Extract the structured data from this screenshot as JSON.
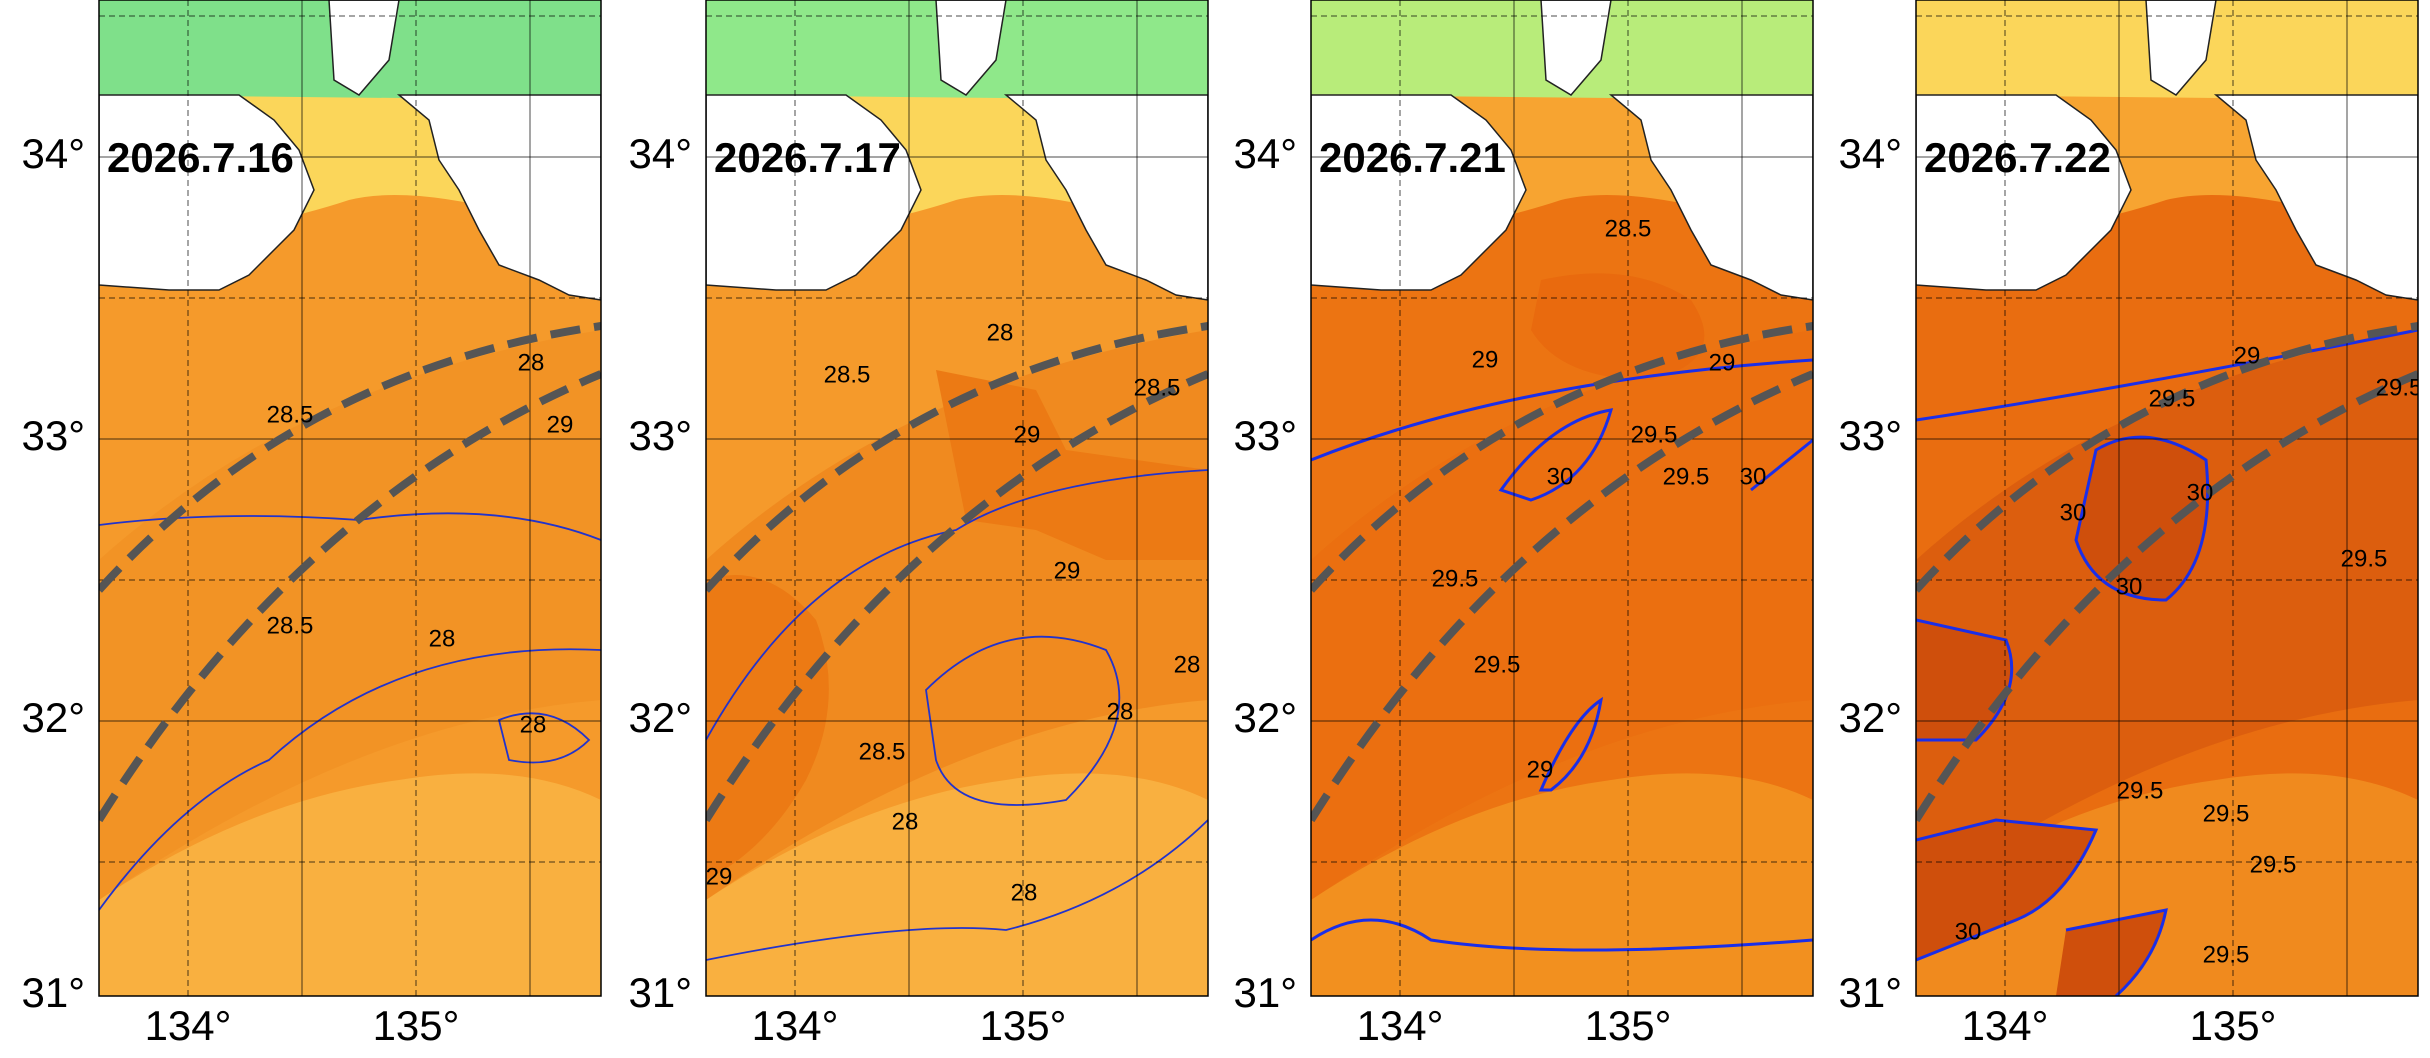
{
  "panels": [
    {
      "date": "2026.7.16",
      "lat_labels": [
        "34°",
        "33°",
        "32°",
        "31°"
      ],
      "lon_labels": [
        "134°",
        "135°"
      ],
      "contour_labels": [
        "28.5",
        "28",
        "29",
        "28.5",
        "28",
        "28"
      ]
    },
    {
      "date": "2026.7.17",
      "lat_labels": [
        "34°",
        "33°",
        "32°",
        "31°"
      ],
      "lon_labels": [
        "134°",
        "135°"
      ],
      "contour_labels": [
        "28.5",
        "28",
        "28.5",
        "29",
        "29",
        "28.5",
        "28",
        "28",
        "28",
        "28",
        "29"
      ]
    },
    {
      "date": "2026.7.21",
      "lat_labels": [
        "34°",
        "33°",
        "32°",
        "31°"
      ],
      "lon_labels": [
        "134°",
        "135°"
      ],
      "contour_labels": [
        "28.5",
        "29",
        "29",
        "29.5",
        "29.5",
        "30",
        "30",
        "29.5",
        "29.5",
        "29"
      ]
    },
    {
      "date": "2026.7.22",
      "lat_labels": [
        "34°",
        "33°",
        "32°",
        "31°"
      ],
      "lon_labels": [
        "134°",
        "135°"
      ],
      "contour_labels": [
        "29",
        "29.5",
        "29.5",
        "30",
        "30",
        "30",
        "29.5",
        "29.5",
        "29.5",
        "29.5",
        "29.5",
        "30"
      ]
    }
  ]
}
